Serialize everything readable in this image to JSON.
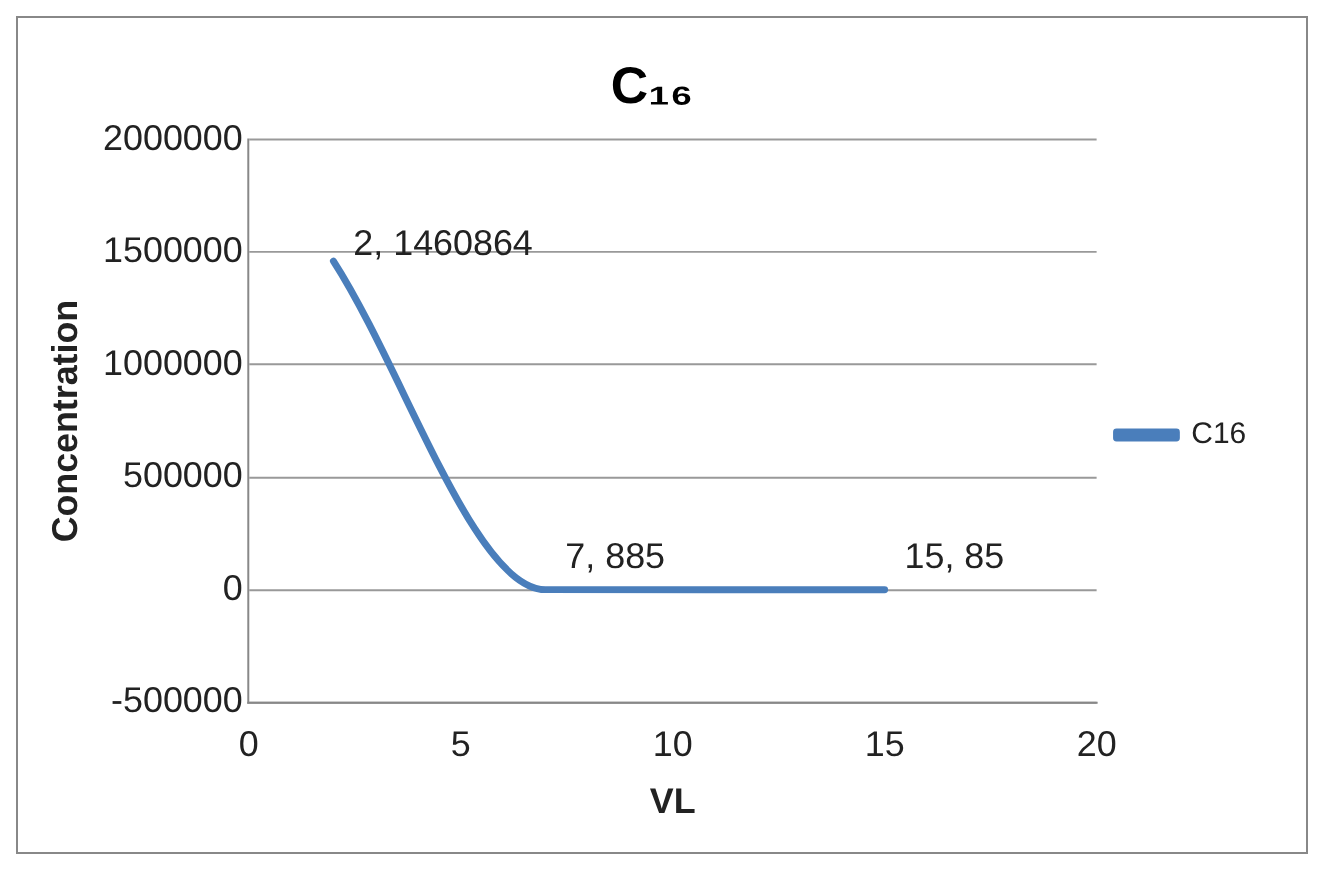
{
  "chart_data": {
    "type": "line",
    "title": "C₁₆",
    "xlabel": "VL",
    "ylabel": "Concentration",
    "x": [
      2,
      7,
      15
    ],
    "series": [
      {
        "name": "C16",
        "color": "#4a7ebb",
        "values": [
          1460864,
          885,
          85
        ],
        "value_labels": [
          "2, 1460864",
          "7, 885",
          "15, 85"
        ]
      }
    ],
    "xlim": [
      0,
      20
    ],
    "xticks": [
      0,
      5,
      10,
      15,
      20
    ],
    "ylim": [
      -500000,
      2000000
    ],
    "yticks": [
      -500000,
      0,
      500000,
      1000000,
      1500000,
      2000000
    ],
    "grid": "y",
    "legend": "right",
    "marker": "none",
    "line_style": "solid"
  }
}
